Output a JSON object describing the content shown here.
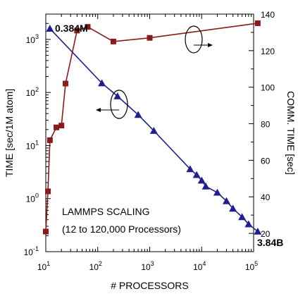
{
  "chart_data": {
    "type": "line",
    "title": "",
    "xlabel": "# PROCESSORS",
    "ylabel_left": "TIME [sec/1M atom]",
    "ylabel_right": "COMM. TIME [sec]",
    "x_scale": "log",
    "y_left_scale": "log",
    "xlim": [
      10,
      100000
    ],
    "ylim_left": [
      0.1,
      3000
    ],
    "ylim_right": [
      10,
      140
    ],
    "x_ticks": [
      {
        "value": 10,
        "base": "10",
        "exp": "1"
      },
      {
        "value": 100,
        "base": "10",
        "exp": "2"
      },
      {
        "value": 1000,
        "base": "10",
        "exp": "3"
      },
      {
        "value": 10000,
        "base": "10",
        "exp": "4"
      },
      {
        "value": 100000,
        "base": "10",
        "exp": "5"
      }
    ],
    "y_left_ticks": [
      {
        "value": 0.1,
        "base": "10",
        "exp": "-1"
      },
      {
        "value": 1,
        "base": "10",
        "exp": "0"
      },
      {
        "value": 10,
        "base": "10",
        "exp": "1"
      },
      {
        "value": 100,
        "base": "10",
        "exp": "2"
      },
      {
        "value": 1000,
        "base": "10",
        "exp": "3"
      }
    ],
    "y_right_ticks": [
      "20",
      "40",
      "60",
      "80",
      "100",
      "120",
      "140"
    ],
    "series": [
      {
        "axis": "left",
        "color": "#1f1f8f",
        "marker": "triangle",
        "x": [
          12,
          120,
          240,
          600,
          1200,
          6000,
          8000,
          10000,
          12000,
          20000,
          30000,
          40000,
          60000,
          80000,
          120000
        ],
        "y": [
          1600,
          150,
          85,
          38,
          19,
          3.6,
          2.8,
          2.2,
          1.7,
          1.3,
          0.9,
          0.65,
          0.45,
          0.33,
          0.24
        ]
      },
      {
        "axis": "right",
        "color": "#8b1a1a",
        "marker": "square",
        "x": [
          10,
          11,
          12,
          16,
          20,
          24,
          40,
          64,
          200,
          1000,
          120000
        ],
        "y": [
          21,
          43,
          71,
          78,
          79,
          102,
          131,
          133,
          125,
          127,
          135
        ]
      }
    ],
    "annotations": {
      "top_label": "0.384M",
      "bottom_label": "3.84B",
      "caption_line1": "LAMMPS SCALING",
      "caption_line2": "(12 to 120,000 Processors)"
    },
    "grid": false,
    "legend": "none"
  }
}
